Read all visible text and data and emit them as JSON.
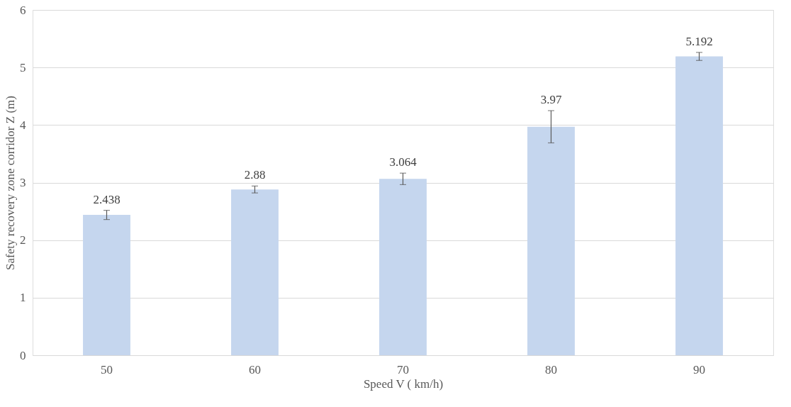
{
  "chart_data": {
    "type": "bar",
    "xlabel": "Speed V ( km/h)",
    "ylabel": "Safety recovery zone corridor Z (m)",
    "categories": [
      "50",
      "60",
      "70",
      "80",
      "90"
    ],
    "values": [
      2.438,
      2.88,
      3.064,
      3.97,
      5.192
    ],
    "errors": [
      0.08,
      0.06,
      0.1,
      0.28,
      0.07
    ],
    "color": "#c5d6ee",
    "ylim": [
      0,
      6
    ],
    "yticks": [
      0,
      1,
      2,
      3,
      4,
      5,
      6
    ],
    "grid": "y",
    "data_labels": true
  }
}
